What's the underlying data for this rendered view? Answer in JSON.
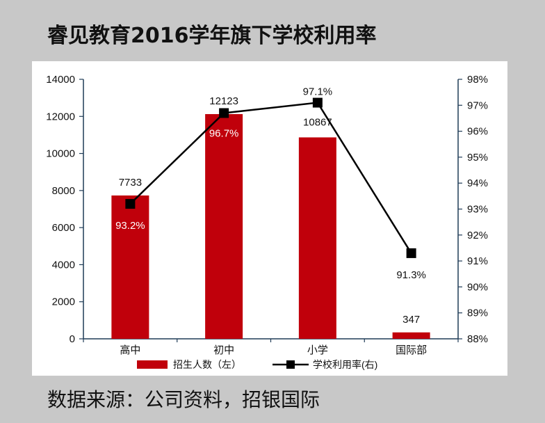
{
  "header": {
    "title": "睿见教育2016学年旗下学校利用率"
  },
  "footer": {
    "source": "数据来源：公司资料，招银国际"
  },
  "chart_data": {
    "type": "bar",
    "categories": [
      "高中",
      "初中",
      "小学",
      "国际部"
    ],
    "series": [
      {
        "name": "招生人数（左）",
        "kind": "bar",
        "axis": "left",
        "color": "#c0000b",
        "values": [
          7733,
          12123,
          10867,
          347
        ],
        "labels": [
          "7733",
          "12123",
          "10867",
          "347"
        ]
      },
      {
        "name": "学校利用率(右)",
        "kind": "line",
        "axis": "right",
        "color": "#000000",
        "values": [
          93.2,
          96.7,
          97.1,
          91.3
        ],
        "labels": [
          "93.2%",
          "96.7%",
          "97.1%",
          "91.3%"
        ]
      }
    ],
    "y_left": {
      "min": 0,
      "max": 14000,
      "ticks": [
        "0",
        "2000",
        "4000",
        "6000",
        "8000",
        "10000",
        "12000",
        "14000"
      ]
    },
    "y_right": {
      "min": 88,
      "max": 98,
      "ticks": [
        "88%",
        "89%",
        "90%",
        "91%",
        "92%",
        "93%",
        "94%",
        "95%",
        "96%",
        "97%",
        "98%"
      ]
    },
    "grid": false,
    "legend_position": "bottom"
  }
}
